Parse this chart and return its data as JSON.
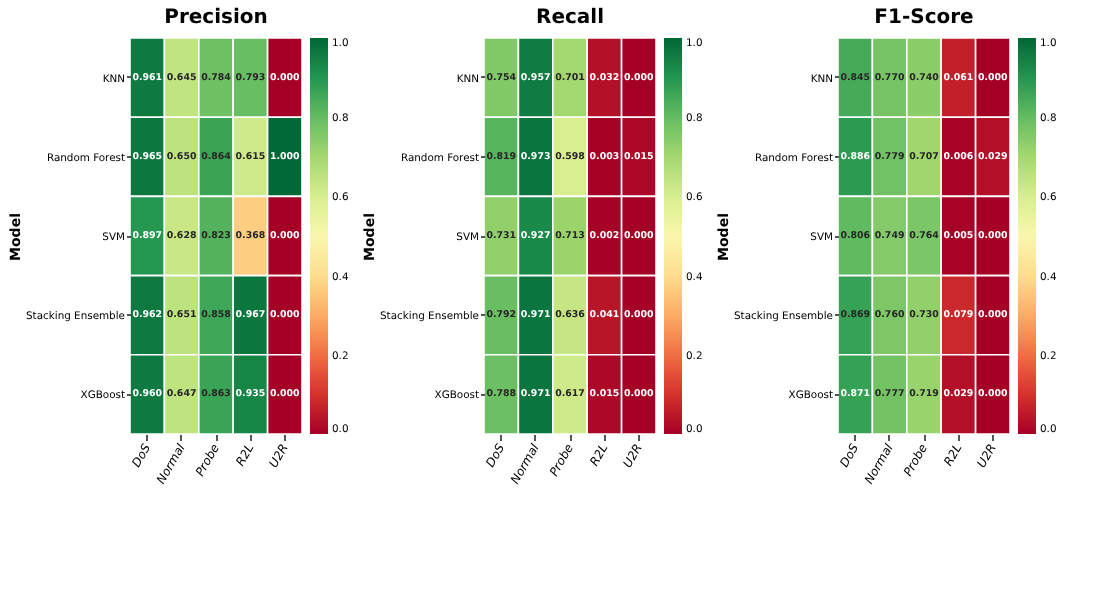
{
  "chart_data": [
    {
      "type": "heatmap",
      "title": "Precision",
      "ylabel": "Model",
      "categories": [
        "DoS",
        "Normal",
        "Probe",
        "R2L",
        "U2R"
      ],
      "y_categories": [
        "KNN",
        "Random Forest",
        "SVM",
        "Stacking Ensemble",
        "XGBoost"
      ],
      "cells": [
        [
          0.961,
          0.645,
          0.784,
          0.793,
          0.0
        ],
        [
          0.965,
          0.65,
          0.864,
          0.615,
          1.0
        ],
        [
          0.897,
          0.628,
          0.823,
          0.368,
          0.0
        ],
        [
          0.962,
          0.651,
          0.858,
          0.967,
          0.0
        ],
        [
          0.96,
          0.647,
          0.863,
          0.935,
          0.0
        ]
      ],
      "cell_labels": [
        [
          "0.961",
          "0.645",
          "0.784",
          "0.793",
          "0.000"
        ],
        [
          "0.965",
          "0.650",
          "0.864",
          "0.615",
          "1.000"
        ],
        [
          "0.897",
          "0.628",
          "0.823",
          "0.368",
          "0.000"
        ],
        [
          "0.962",
          "0.651",
          "0.858",
          "0.967",
          "0.000"
        ],
        [
          "0.960",
          "0.647",
          "0.863",
          "0.935",
          "0.000"
        ]
      ],
      "clim": [
        0,
        1
      ],
      "cticks": [
        {
          "value": 0,
          "label": "0.0"
        },
        {
          "value": 0.2,
          "label": "0.2"
        },
        {
          "value": 0.4,
          "label": "0.4"
        },
        {
          "value": 0.6,
          "label": "0.6"
        },
        {
          "value": 0.8,
          "label": "0.8"
        },
        {
          "value": 1,
          "label": "1.0"
        }
      ]
    },
    {
      "type": "heatmap",
      "title": "Recall",
      "ylabel": "Model",
      "categories": [
        "DoS",
        "Normal",
        "Probe",
        "R2L",
        "U2R"
      ],
      "y_categories": [
        "KNN",
        "Random Forest",
        "SVM",
        "Stacking Ensemble",
        "XGBoost"
      ],
      "cells": [
        [
          0.754,
          0.957,
          0.701,
          0.032,
          0.0
        ],
        [
          0.819,
          0.973,
          0.598,
          0.003,
          0.015
        ],
        [
          0.731,
          0.927,
          0.713,
          0.002,
          0.0
        ],
        [
          0.792,
          0.971,
          0.636,
          0.041,
          0.0
        ],
        [
          0.788,
          0.971,
          0.617,
          0.015,
          0.0
        ]
      ],
      "cell_labels": [
        [
          "0.754",
          "0.957",
          "0.701",
          "0.032",
          "0.000"
        ],
        [
          "0.819",
          "0.973",
          "0.598",
          "0.003",
          "0.015"
        ],
        [
          "0.731",
          "0.927",
          "0.713",
          "0.002",
          "0.000"
        ],
        [
          "0.792",
          "0.971",
          "0.636",
          "0.041",
          "0.000"
        ],
        [
          "0.788",
          "0.971",
          "0.617",
          "0.015",
          "0.000"
        ]
      ],
      "clim": [
        0,
        1
      ],
      "cticks": [
        {
          "value": 0,
          "label": "0.0"
        },
        {
          "value": 0.2,
          "label": "0.2"
        },
        {
          "value": 0.4,
          "label": "0.4"
        },
        {
          "value": 0.6,
          "label": "0.6"
        },
        {
          "value": 0.8,
          "label": "0.8"
        },
        {
          "value": 1,
          "label": "1.0"
        }
      ]
    },
    {
      "type": "heatmap",
      "title": "F1-Score",
      "ylabel": "Model",
      "categories": [
        "DoS",
        "Normal",
        "Probe",
        "R2L",
        "U2R"
      ],
      "y_categories": [
        "KNN",
        "Random Forest",
        "SVM",
        "Stacking Ensemble",
        "XGBoost"
      ],
      "cells": [
        [
          0.845,
          0.77,
          0.74,
          0.061,
          0.0
        ],
        [
          0.886,
          0.779,
          0.707,
          0.006,
          0.029
        ],
        [
          0.806,
          0.749,
          0.764,
          0.005,
          0.0
        ],
        [
          0.869,
          0.76,
          0.73,
          0.079,
          0.0
        ],
        [
          0.871,
          0.777,
          0.719,
          0.029,
          0.0
        ]
      ],
      "cell_labels": [
        [
          "0.845",
          "0.770",
          "0.740",
          "0.061",
          "0.000"
        ],
        [
          "0.886",
          "0.779",
          "0.707",
          "0.006",
          "0.029"
        ],
        [
          "0.806",
          "0.749",
          "0.764",
          "0.005",
          "0.000"
        ],
        [
          "0.869",
          "0.760",
          "0.730",
          "0.079",
          "0.000"
        ],
        [
          "0.871",
          "0.777",
          "0.719",
          "0.029",
          "0.000"
        ]
      ],
      "clim": [
        0,
        1
      ],
      "cticks": [
        {
          "value": 0,
          "label": "0.0"
        },
        {
          "value": 0.2,
          "label": "0.2"
        },
        {
          "value": 0.4,
          "label": "0.4"
        },
        {
          "value": 0.6,
          "label": "0.6"
        },
        {
          "value": 0.8,
          "label": "0.8"
        },
        {
          "value": 1,
          "label": "1.0"
        }
      ]
    }
  ]
}
